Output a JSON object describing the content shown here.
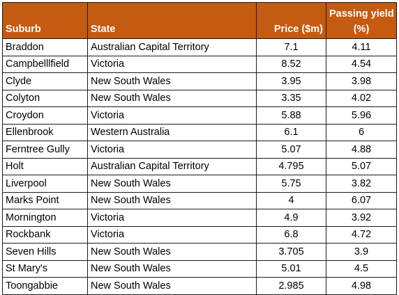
{
  "table": {
    "headers": {
      "suburb": "Suburb",
      "state": "State",
      "price": "Price ($m)",
      "yield_line1": "Passing yield",
      "yield_line2": "(%)"
    },
    "rows": [
      {
        "suburb": "Braddon",
        "state": "Australian Capital Territory",
        "price": "7.1",
        "yield": "4.11"
      },
      {
        "suburb": "Campbelllfield",
        "state": "Victoria",
        "price": "8.52",
        "yield": "4.54"
      },
      {
        "suburb": "Clyde",
        "state": "New South Wales",
        "price": "3.95",
        "yield": "3.98"
      },
      {
        "suburb": "Colyton",
        "state": "New South Wales",
        "price": "3.35",
        "yield": "4.02"
      },
      {
        "suburb": "Croydon",
        "state": "Victoria",
        "price": "5.88",
        "yield": "5.96"
      },
      {
        "suburb": "Ellenbrook",
        "state": "Western Australia",
        "price": "6.1",
        "yield": "6"
      },
      {
        "suburb": "Ferntree Gully",
        "state": "Victoria",
        "price": "5.07",
        "yield": "4.88"
      },
      {
        "suburb": "Holt",
        "state": "Australian Capital Territory",
        "price": "4.795",
        "yield": "5.07"
      },
      {
        "suburb": "Liverpool",
        "state": "New South Wales",
        "price": "5.75",
        "yield": "3.82"
      },
      {
        "suburb": "Marks Point",
        "state": "New South Wales",
        "price": "4",
        "yield": "6.07"
      },
      {
        "suburb": "Mornington",
        "state": "Victoria",
        "price": "4.9",
        "yield": "3.92"
      },
      {
        "suburb": "Rockbank",
        "state": "Victoria",
        "price": "6.8",
        "yield": "4.72"
      },
      {
        "suburb": "Seven Hills",
        "state": "New South Wales",
        "price": "3.705",
        "yield": "3.9"
      },
      {
        "suburb": "St Mary's",
        "state": "New South Wales",
        "price": "5.01",
        "yield": "4.5"
      },
      {
        "suburb": "Toongabbie",
        "state": "New South Wales",
        "price": "2.985",
        "yield": "4.98"
      }
    ]
  },
  "colors": {
    "header_bg": "#c55a11",
    "header_text": "#ffffff",
    "border": "#1a1a1a"
  }
}
